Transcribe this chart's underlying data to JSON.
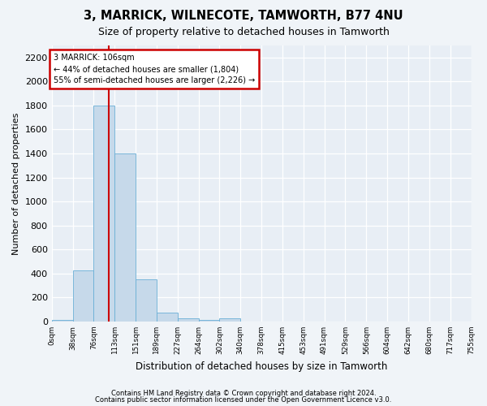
{
  "title": "3, MARRICK, WILNECOTE, TAMWORTH, B77 4NU",
  "subtitle": "Size of property relative to detached houses in Tamworth",
  "xlabel": "Distribution of detached houses by size in Tamworth",
  "ylabel": "Number of detached properties",
  "bar_values": [
    15,
    425,
    1800,
    1400,
    350,
    70,
    25,
    15,
    25,
    0,
    0,
    0,
    0,
    0,
    0,
    0,
    0,
    0,
    0,
    0
  ],
  "tick_labels": [
    "0sqm",
    "38sqm",
    "76sqm",
    "113sqm",
    "151sqm",
    "189sqm",
    "227sqm",
    "264sqm",
    "302sqm",
    "340sqm",
    "378sqm",
    "415sqm",
    "453sqm",
    "491sqm",
    "529sqm",
    "566sqm",
    "604sqm",
    "642sqm",
    "680sqm",
    "717sqm",
    "755sqm"
  ],
  "bar_color": "#c6d9ea",
  "bar_edgecolor": "#6aafd6",
  "vline_x": 2.72,
  "vline_color": "#cc0000",
  "annotation_text": "3 MARRICK: 106sqm\n← 44% of detached houses are smaller (1,804)\n55% of semi-detached houses are larger (2,226) →",
  "annotation_box_color": "#cc0000",
  "ylim": [
    0,
    2300
  ],
  "yticks": [
    0,
    200,
    400,
    600,
    800,
    1000,
    1200,
    1400,
    1600,
    1800,
    2000,
    2200
  ],
  "footer_line1": "Contains HM Land Registry data © Crown copyright and database right 2024.",
  "footer_line2": "Contains public sector information licensed under the Open Government Licence v3.0.",
  "bg_color": "#f0f4f8",
  "plot_bg_color": "#e8eef5"
}
